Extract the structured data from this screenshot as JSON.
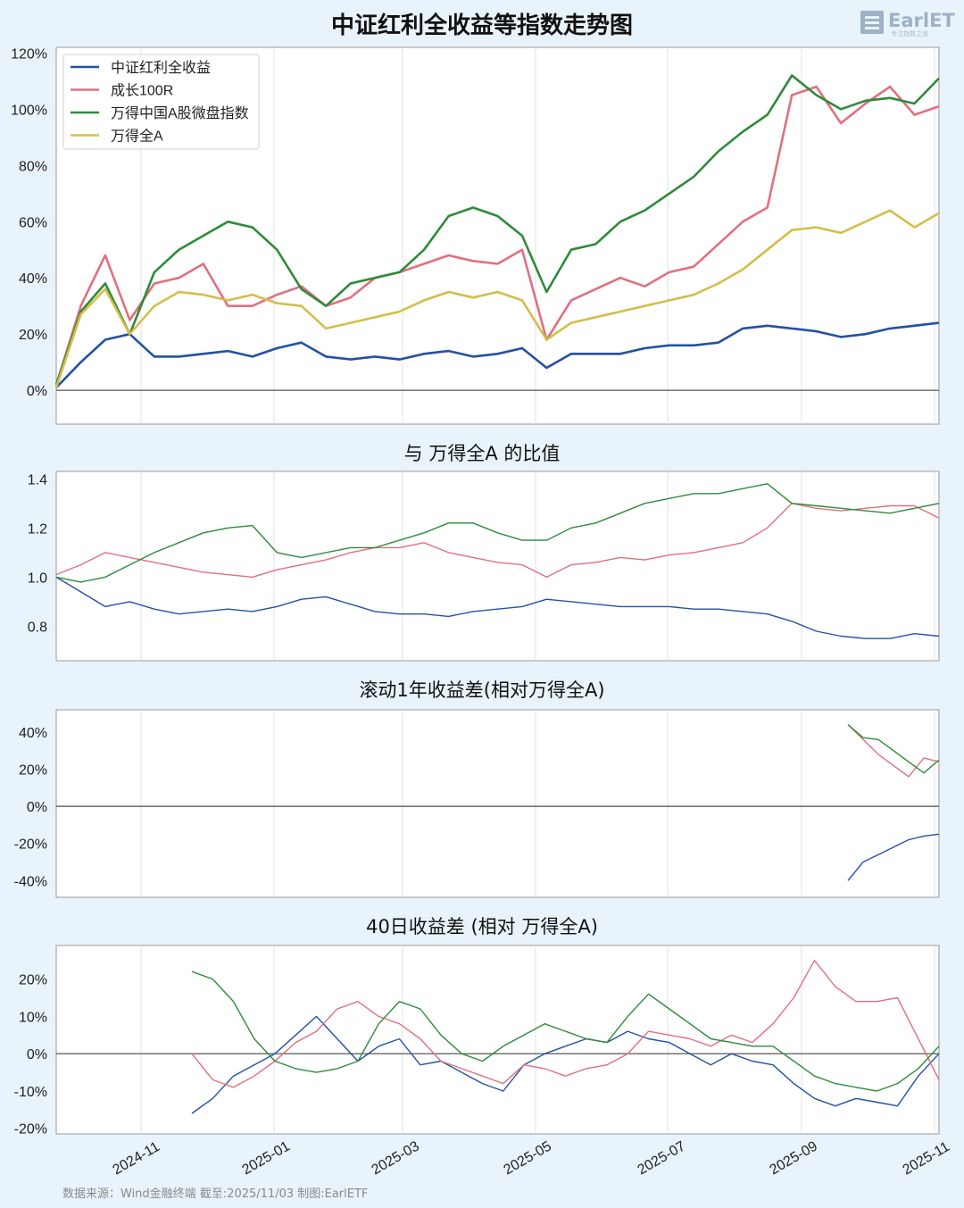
{
  "page_title": "中证红利全收益等指数走势图",
  "logo": {
    "text": "EarlETF",
    "sub": "专注指数之道"
  },
  "footer": "数据来源：Wind金融终端 截至:2025/11/03 制图:EarlETF",
  "colors": {
    "blue": "#2451a3",
    "red": "#e0707e",
    "green": "#2e8b3a",
    "yellow": "#d4be4a"
  },
  "x_ticks": [
    "2024-11",
    "2025-01",
    "2025-03",
    "2025-05",
    "2025-07",
    "2025-09",
    "2025-11"
  ],
  "chart_data": [
    {
      "type": "line",
      "title": "中证红利全收益等指数走势图",
      "ylim": [
        -12,
        122
      ],
      "y_ticks": [
        "0%",
        "20%",
        "40%",
        "60%",
        "80%",
        "100%",
        "120%"
      ],
      "legend_position": "top-left",
      "x": [
        "2024-10",
        "2024-10",
        "2024-10",
        "2024-10",
        "2024-11",
        "2024-11",
        "2024-11",
        "2024-12",
        "2024-12",
        "2024-12",
        "2025-01",
        "2025-01",
        "2025-01",
        "2025-02",
        "2025-02",
        "2025-02",
        "2025-03",
        "2025-03",
        "2025-04",
        "2025-04",
        "2025-04",
        "2025-04",
        "2025-05",
        "2025-05",
        "2025-06",
        "2025-06",
        "2025-07",
        "2025-07",
        "2025-08",
        "2025-08",
        "2025-08",
        "2025-09",
        "2025-09",
        "2025-10",
        "2025-10",
        "2025-10",
        "2025-11"
      ],
      "series": [
        {
          "name": "中证红利全收益",
          "color": "#2451a3",
          "values": [
            1,
            10,
            18,
            20,
            12,
            12,
            13,
            14,
            12,
            15,
            17,
            12,
            11,
            12,
            11,
            13,
            14,
            12,
            13,
            15,
            8,
            13,
            13,
            13,
            15,
            16,
            16,
            17,
            22,
            23,
            22,
            21,
            19,
            20,
            22,
            23,
            24
          ]
        },
        {
          "name": "成长100R",
          "color": "#e0707e",
          "values": [
            2,
            30,
            48,
            25,
            38,
            40,
            45,
            30,
            30,
            34,
            37,
            30,
            33,
            40,
            42,
            45,
            48,
            46,
            45,
            50,
            18,
            32,
            36,
            40,
            37,
            42,
            44,
            52,
            60,
            65,
            105,
            108,
            95,
            102,
            108,
            98,
            101
          ]
        },
        {
          "name": "万得中国A股微盘指数",
          "color": "#2e8b3a",
          "values": [
            2,
            28,
            38,
            20,
            42,
            50,
            55,
            60,
            58,
            50,
            36,
            30,
            38,
            40,
            42,
            50,
            62,
            65,
            62,
            55,
            35,
            50,
            52,
            60,
            64,
            70,
            76,
            85,
            92,
            98,
            112,
            105,
            100,
            103,
            104,
            102,
            111
          ]
        },
        {
          "name": "万得全A",
          "color": "#d4be4a",
          "values": [
            1,
            27,
            36,
            20,
            30,
            35,
            34,
            32,
            34,
            31,
            30,
            22,
            24,
            26,
            28,
            32,
            35,
            33,
            35,
            32,
            18,
            24,
            26,
            28,
            30,
            32,
            34,
            38,
            43,
            50,
            57,
            58,
            56,
            60,
            64,
            58,
            63
          ]
        }
      ]
    },
    {
      "type": "line",
      "title": "与 万得全A 的比值",
      "ylim": [
        0.66,
        1.43
      ],
      "y_ticks": [
        "0.8",
        "1.0",
        "1.2",
        "1.4"
      ],
      "series": [
        {
          "name": "中证红利全收益",
          "color": "#2451a3",
          "values": [
            1.0,
            0.94,
            0.88,
            0.9,
            0.87,
            0.85,
            0.86,
            0.87,
            0.86,
            0.88,
            0.91,
            0.92,
            0.89,
            0.86,
            0.85,
            0.85,
            0.84,
            0.86,
            0.87,
            0.88,
            0.91,
            0.9,
            0.89,
            0.88,
            0.88,
            0.88,
            0.87,
            0.87,
            0.86,
            0.85,
            0.82,
            0.78,
            0.76,
            0.75,
            0.75,
            0.77,
            0.76
          ]
        },
        {
          "name": "成长100R",
          "color": "#e0707e",
          "values": [
            1.01,
            1.05,
            1.1,
            1.08,
            1.06,
            1.04,
            1.02,
            1.01,
            1.0,
            1.03,
            1.05,
            1.07,
            1.1,
            1.12,
            1.12,
            1.14,
            1.1,
            1.08,
            1.06,
            1.05,
            1.0,
            1.05,
            1.06,
            1.08,
            1.07,
            1.09,
            1.1,
            1.12,
            1.14,
            1.2,
            1.3,
            1.28,
            1.27,
            1.28,
            1.29,
            1.29,
            1.24
          ]
        },
        {
          "name": "万得中国A股微盘指数",
          "color": "#2e8b3a",
          "values": [
            1.0,
            0.98,
            1.0,
            1.05,
            1.1,
            1.14,
            1.18,
            1.2,
            1.21,
            1.1,
            1.08,
            1.1,
            1.12,
            1.12,
            1.15,
            1.18,
            1.22,
            1.22,
            1.18,
            1.15,
            1.15,
            1.2,
            1.22,
            1.26,
            1.3,
            1.32,
            1.34,
            1.34,
            1.36,
            1.38,
            1.3,
            1.29,
            1.28,
            1.27,
            1.26,
            1.28,
            1.3
          ]
        }
      ]
    },
    {
      "type": "line",
      "title": "滚动1年收益差(相对万得全A)",
      "ylim": [
        -49,
        52
      ],
      "y_ticks": [
        "-40%",
        "-20%",
        "0%",
        "20%",
        "40%"
      ],
      "x": [
        "2025-09",
        "2025-10",
        "2025-10",
        "2025-10",
        "2025-10",
        "2025-11",
        "2025-11"
      ],
      "series": [
        {
          "name": "中证红利全收益",
          "color": "#2451a3",
          "values": [
            -40,
            -30,
            -26,
            -22,
            -18,
            -16,
            -15
          ]
        },
        {
          "name": "成长100R",
          "color": "#e0707e",
          "values": [
            44,
            36,
            28,
            22,
            16,
            26,
            24
          ]
        },
        {
          "name": "万得中国A股微盘指数",
          "color": "#2e8b3a",
          "values": [
            44,
            37,
            36,
            30,
            24,
            18,
            25
          ]
        }
      ]
    },
    {
      "type": "line",
      "title": "40日收益差 (相对 万得全A)",
      "ylim": [
        -21.5,
        29
      ],
      "y_ticks": [
        "-20%",
        "-10%",
        "0%",
        "10%",
        "20%"
      ],
      "series": [
        {
          "name": "中证红利全收益",
          "color": "#2451a3",
          "values": [
            -16,
            -12,
            -6,
            -3,
            0,
            5,
            10,
            4,
            -2,
            2,
            4,
            -3,
            -2,
            -5,
            -8,
            -10,
            -3,
            0,
            2,
            4,
            3,
            6,
            4,
            3,
            0,
            -3,
            0,
            -2,
            -3,
            -8,
            -12,
            -14,
            -12,
            -13,
            -14,
            -6,
            0
          ]
        },
        {
          "name": "成长100R",
          "color": "#e0707e",
          "values": [
            0,
            -7,
            -9,
            -6,
            -2,
            3,
            6,
            12,
            14,
            10,
            8,
            4,
            -2,
            -4,
            -6,
            -8,
            -3,
            -4,
            -6,
            -4,
            -3,
            0,
            6,
            5,
            4,
            2,
            5,
            3,
            8,
            15,
            25,
            18,
            14,
            14,
            15,
            4,
            -7
          ]
        },
        {
          "name": "万得中国A股微盘指数",
          "color": "#2e8b3a",
          "values": [
            22,
            20,
            14,
            4,
            -2,
            -4,
            -5,
            -4,
            -2,
            8,
            14,
            12,
            5,
            0,
            -2,
            2,
            5,
            8,
            6,
            4,
            3,
            10,
            16,
            12,
            8,
            4,
            3,
            2,
            2,
            -2,
            -6,
            -8,
            -9,
            -10,
            -8,
            -4,
            2
          ]
        }
      ]
    }
  ]
}
